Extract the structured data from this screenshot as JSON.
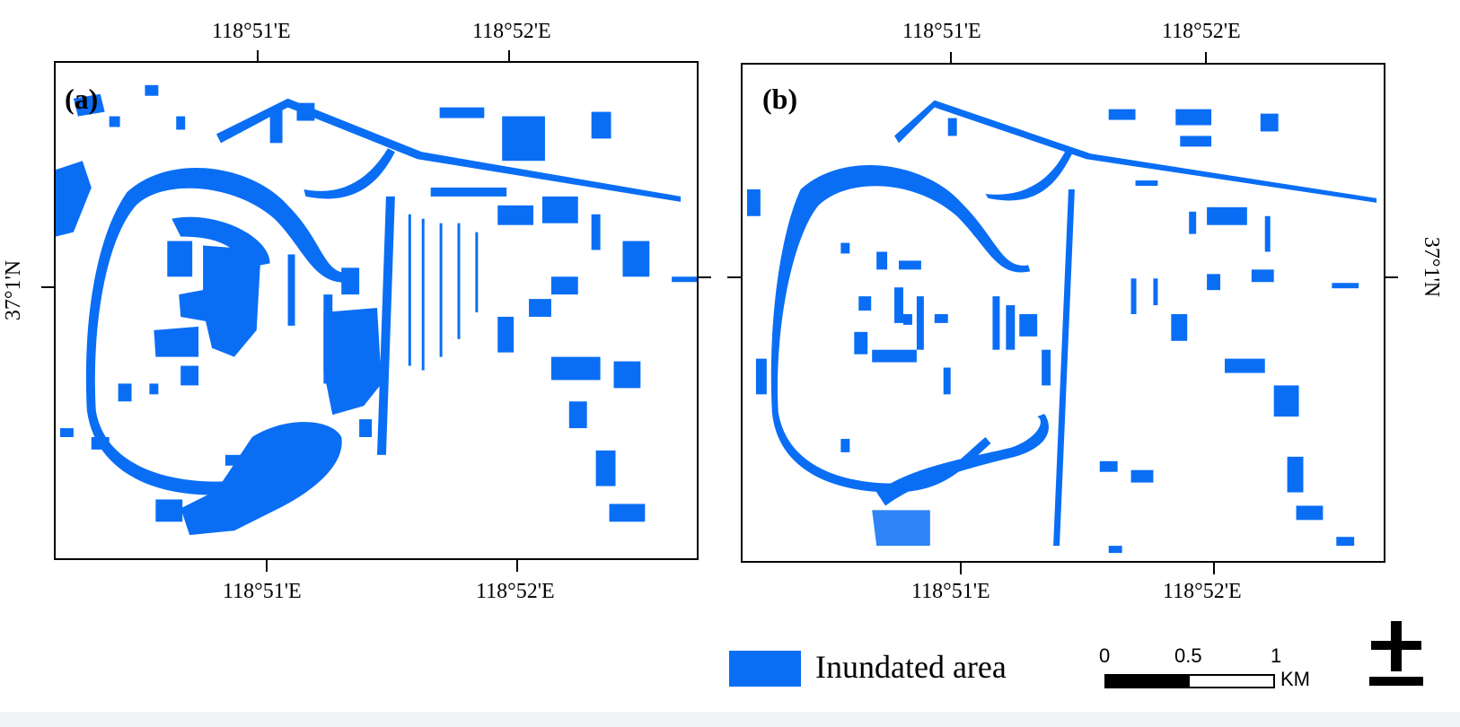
{
  "panels": [
    {
      "label": "(a)"
    },
    {
      "label": "(b)"
    }
  ],
  "axis": {
    "lon_top": [
      "118°51'E",
      "118°52'E"
    ],
    "lon_bottom": [
      "118°51'E",
      "118°52'E"
    ],
    "lat": "37°1'N"
  },
  "legend": {
    "label": "Inundated area",
    "color": "#0a6ef5"
  },
  "scale": {
    "ticks": [
      "0",
      "0.5",
      "1"
    ],
    "unit": "KM"
  },
  "colors": {
    "water": "#0a6ef5",
    "frame": "#000000"
  }
}
